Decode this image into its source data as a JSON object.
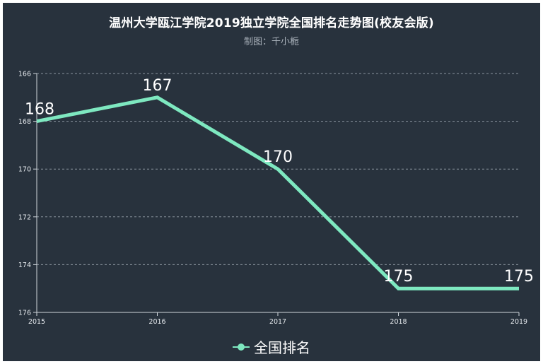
{
  "chart_data": {
    "type": "line",
    "title": "温州大学瓯江学院2019独立学院全国排名走势图(校友会版)",
    "subtitle": "制图：千小栀",
    "categories": [
      "2015",
      "2016",
      "2017",
      "2018",
      "2019"
    ],
    "series": [
      {
        "name": "全国排名",
        "values": [
          168,
          167,
          170,
          175,
          175
        ],
        "data_labels": [
          "168",
          "167",
          "170",
          "175",
          "175"
        ]
      }
    ],
    "y_axis": {
      "inverse": true,
      "min": 166,
      "max": 176,
      "ticks": [
        "166",
        "168",
        "170",
        "172",
        "174",
        "176"
      ]
    },
    "grid": true,
    "legend_position": "bottom-center",
    "line_color": "#7ee8c0",
    "background_color": "#28323d"
  }
}
